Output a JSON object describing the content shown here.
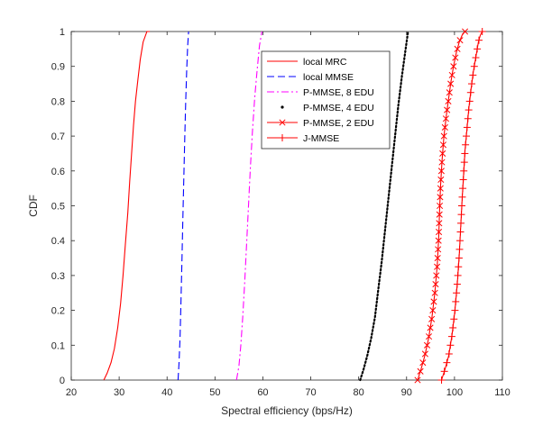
{
  "chart_data": {
    "type": "line",
    "title": "",
    "xlabel": "Spectral efficiency (bps/Hz)",
    "ylabel": "CDF",
    "xlim": [
      20,
      110
    ],
    "ylim": [
      0,
      1
    ],
    "xticks": [
      20,
      30,
      40,
      50,
      60,
      70,
      80,
      90,
      100,
      110
    ],
    "yticks": [
      0,
      0.1,
      0.2,
      0.3,
      0.4,
      0.5,
      0.6,
      0.7,
      0.8,
      0.9,
      1
    ],
    "grid": false,
    "legend_position": "top-center",
    "series": [
      {
        "name": "local MRC",
        "color": "#ff0000",
        "line": "solid",
        "marker": "none",
        "x": [
          26.8,
          27.5,
          28.3,
          29.0,
          29.7,
          30.3,
          30.8,
          31.3,
          31.8,
          32.2,
          32.6,
          33.0,
          33.4,
          33.9,
          34.4,
          35.0,
          35.8,
          36.4
        ],
        "y": [
          0,
          0.02,
          0.05,
          0.09,
          0.15,
          0.22,
          0.3,
          0.39,
          0.48,
          0.57,
          0.65,
          0.73,
          0.8,
          0.86,
          0.92,
          0.97,
          1.0,
          1.0
        ]
      },
      {
        "name": "local MMSE",
        "color": "#0000ff",
        "line": "dashed",
        "marker": "none",
        "x": [
          42.3,
          42.5,
          42.7,
          42.9,
          43.1,
          43.3,
          43.5,
          43.7,
          43.9,
          44.1,
          44.3,
          44.5
        ],
        "y": [
          0,
          0.05,
          0.12,
          0.22,
          0.34,
          0.46,
          0.58,
          0.7,
          0.8,
          0.89,
          0.96,
          1.0
        ]
      },
      {
        "name": "P-MMSE, 8 EDU",
        "color": "#ff00ff",
        "line": "dashdot",
        "marker": "none",
        "x": [
          54.5,
          55.0,
          55.4,
          55.8,
          56.2,
          56.6,
          57.0,
          57.4,
          57.8,
          58.3,
          58.8,
          59.3,
          59.8
        ],
        "y": [
          0,
          0.04,
          0.1,
          0.18,
          0.28,
          0.39,
          0.5,
          0.61,
          0.71,
          0.81,
          0.89,
          0.96,
          1.0
        ]
      },
      {
        "name": "P-MMSE, 4 EDU",
        "color": "#000000",
        "line": "dotted",
        "marker": "none",
        "x": [
          80.3,
          81.0,
          81.8,
          82.6,
          83.4,
          84.1,
          84.8,
          85.5,
          86.2,
          86.9,
          87.6,
          88.3,
          89.0,
          89.7,
          90.3
        ],
        "y": [
          0,
          0.03,
          0.07,
          0.12,
          0.18,
          0.26,
          0.34,
          0.43,
          0.52,
          0.61,
          0.7,
          0.79,
          0.87,
          0.94,
          1.0
        ]
      },
      {
        "name": "P-MMSE, 2 EDU",
        "color": "#ff0000",
        "line": "solid",
        "marker": "x",
        "x": [
          92.3,
          93.0,
          93.8,
          94.6,
          95.3,
          95.9,
          96.4,
          96.7,
          96.9,
          97.1,
          97.4,
          97.8,
          98.3,
          98.8,
          99.3,
          99.8,
          100.4,
          101.0,
          101.6,
          102.2
        ],
        "y": [
          0,
          0.03,
          0.07,
          0.12,
          0.18,
          0.25,
          0.33,
          0.41,
          0.49,
          0.56,
          0.63,
          0.7,
          0.76,
          0.81,
          0.86,
          0.9,
          0.94,
          0.97,
          0.99,
          1.0
        ]
      },
      {
        "name": "J-MMSE",
        "color": "#ff0000",
        "line": "solid",
        "marker": "+",
        "x": [
          97.3,
          98.0,
          98.8,
          99.5,
          100.1,
          100.6,
          101.0,
          101.3,
          101.6,
          101.9,
          102.2,
          102.6,
          103.0,
          103.5,
          104.0,
          104.5,
          105.0,
          105.4,
          105.8
        ],
        "y": [
          0,
          0.03,
          0.07,
          0.13,
          0.2,
          0.28,
          0.36,
          0.44,
          0.52,
          0.59,
          0.66,
          0.72,
          0.78,
          0.84,
          0.89,
          0.93,
          0.97,
          0.99,
          1.0
        ]
      }
    ]
  }
}
